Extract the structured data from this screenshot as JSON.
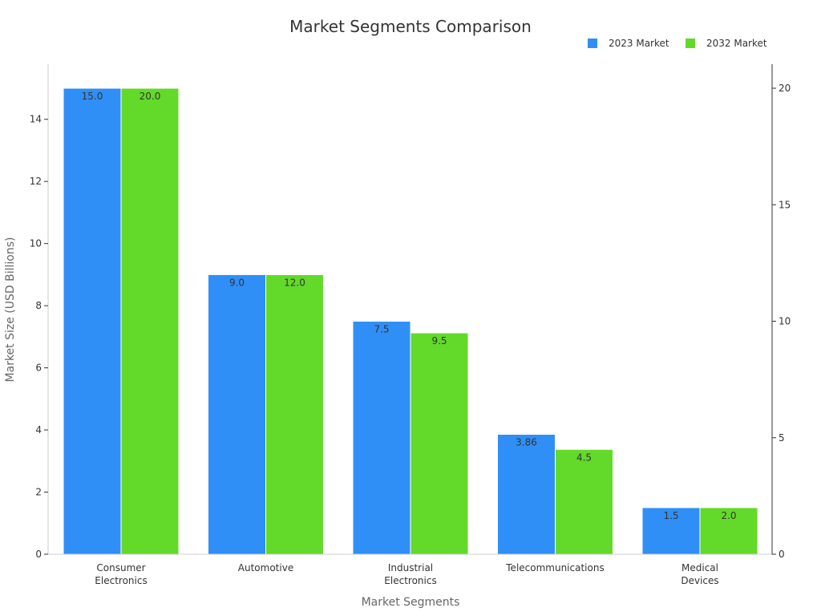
{
  "chart_data": {
    "type": "bar",
    "title": "Market Segments Comparison",
    "xlabel": "Market Segments",
    "ylabel": "Market Size (USD Billions)",
    "categories": [
      [
        "Consumer",
        "Electronics"
      ],
      [
        "Automotive"
      ],
      [
        "Industrial",
        "Electronics"
      ],
      [
        "Telecommunications"
      ],
      [
        "Medical",
        "Devices"
      ]
    ],
    "series": [
      {
        "name": "2023 Market",
        "color": "#2f8ff7",
        "axis": "left",
        "values": [
          15.0,
          9.0,
          7.5,
          3.86,
          1.5
        ],
        "labels": [
          "15.0",
          "9.0",
          "7.5",
          "3.86",
          "1.5"
        ]
      },
      {
        "name": "2032 Market",
        "color": "#63d92a",
        "axis": "right",
        "values": [
          20.0,
          12.0,
          9.5,
          4.5,
          2.0
        ],
        "labels": [
          "20.0",
          "12.0",
          "9.5",
          "4.5",
          "2.0"
        ]
      }
    ],
    "ylim_left": [
      0,
      15.5
    ],
    "ylim_right": [
      0,
      20.67
    ],
    "yticks_left": [
      0,
      2,
      4,
      6,
      8,
      10,
      12,
      14
    ],
    "yticks_right": [
      0,
      5,
      10,
      15,
      20
    ],
    "legend": "top-right",
    "grid": false
  }
}
